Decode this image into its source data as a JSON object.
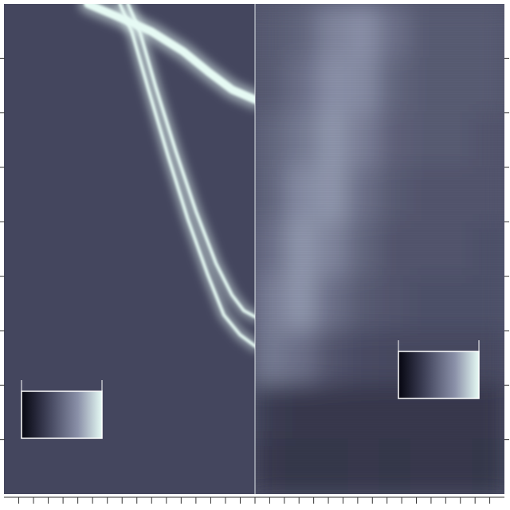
{
  "chart_data": [
    {
      "type": "line",
      "xlim": [
        0,
        17
      ],
      "ylim": [
        0,
        9
      ],
      "xticks": [
        1,
        2,
        3,
        4,
        5,
        6,
        7,
        8,
        9,
        10,
        11,
        12,
        13,
        14,
        15,
        16
      ],
      "yticks": [
        1,
        2,
        3,
        4,
        5,
        6,
        7,
        8
      ],
      "tick_labels": false,
      "colorbar": {
        "range": [
          0,
          1
        ]
      },
      "series": [
        {
          "color": "#e6faf4",
          "x": [
            5.68,
            7.85,
            10.02,
            12.18,
            13.81,
            15.43,
            17.05
          ],
          "values": [
            9.0,
            8.75,
            8.49,
            8.12,
            7.76,
            7.43,
            7.24
          ]
        },
        {
          "color": "#e6faf4",
          "x": [
            8.39,
            9.2,
            10.29,
            11.64,
            12.99,
            14.35,
            15.43,
            16.24,
            17.05
          ],
          "values": [
            9.0,
            8.49,
            7.46,
            6.29,
            5.2,
            4.24,
            3.66,
            3.37,
            3.25
          ]
        },
        {
          "color": "#e6faf4",
          "x": [
            7.85,
            8.66,
            9.75,
            11.1,
            12.45,
            13.81,
            14.89,
            15.97,
            17.05
          ],
          "values": [
            9.0,
            8.49,
            7.46,
            6.22,
            5.05,
            4.02,
            3.29,
            2.93,
            2.71
          ]
        }
      ]
    },
    {
      "type": "heatmap",
      "xlim": [
        17,
        34
      ],
      "ylim": [
        0,
        9
      ],
      "xticks": [
        17,
        18,
        19,
        20,
        21,
        22,
        23,
        24,
        25,
        26,
        27,
        28,
        29,
        30,
        31,
        32,
        33
      ],
      "yticks": [
        1,
        2,
        3,
        4,
        5,
        6,
        7,
        8
      ],
      "tick_labels": false,
      "colorbar": {
        "range": [
          0,
          1
        ]
      },
      "x_edges": [
        17,
        19.125,
        21.25,
        23.375,
        25.5,
        27.625,
        29.75,
        31.875,
        34
      ],
      "y_edges": [
        9,
        8,
        7,
        6,
        5,
        4,
        3,
        2,
        1,
        0
      ],
      "cells": [
        [
          0.45,
          0.5,
          0.65,
          0.7,
          0.55,
          0.45,
          0.45,
          0.45
        ],
        [
          0.45,
          0.55,
          0.7,
          0.68,
          0.5,
          0.45,
          0.45,
          0.45
        ],
        [
          0.5,
          0.6,
          0.72,
          0.62,
          0.48,
          0.45,
          0.45,
          0.42
        ],
        [
          0.5,
          0.68,
          0.72,
          0.55,
          0.45,
          0.42,
          0.42,
          0.42
        ],
        [
          0.55,
          0.72,
          0.65,
          0.5,
          0.42,
          0.42,
          0.42,
          0.4
        ],
        [
          0.62,
          0.72,
          0.55,
          0.45,
          0.42,
          0.4,
          0.4,
          0.4
        ],
        [
          0.6,
          0.55,
          0.42,
          0.38,
          0.36,
          0.36,
          0.36,
          0.36
        ],
        [
          0.3,
          0.28,
          0.28,
          0.28,
          0.28,
          0.28,
          0.28,
          0.28
        ],
        [
          0.28,
          0.27,
          0.27,
          0.28,
          0.27,
          0.28,
          0.28,
          0.27
        ]
      ]
    }
  ]
}
